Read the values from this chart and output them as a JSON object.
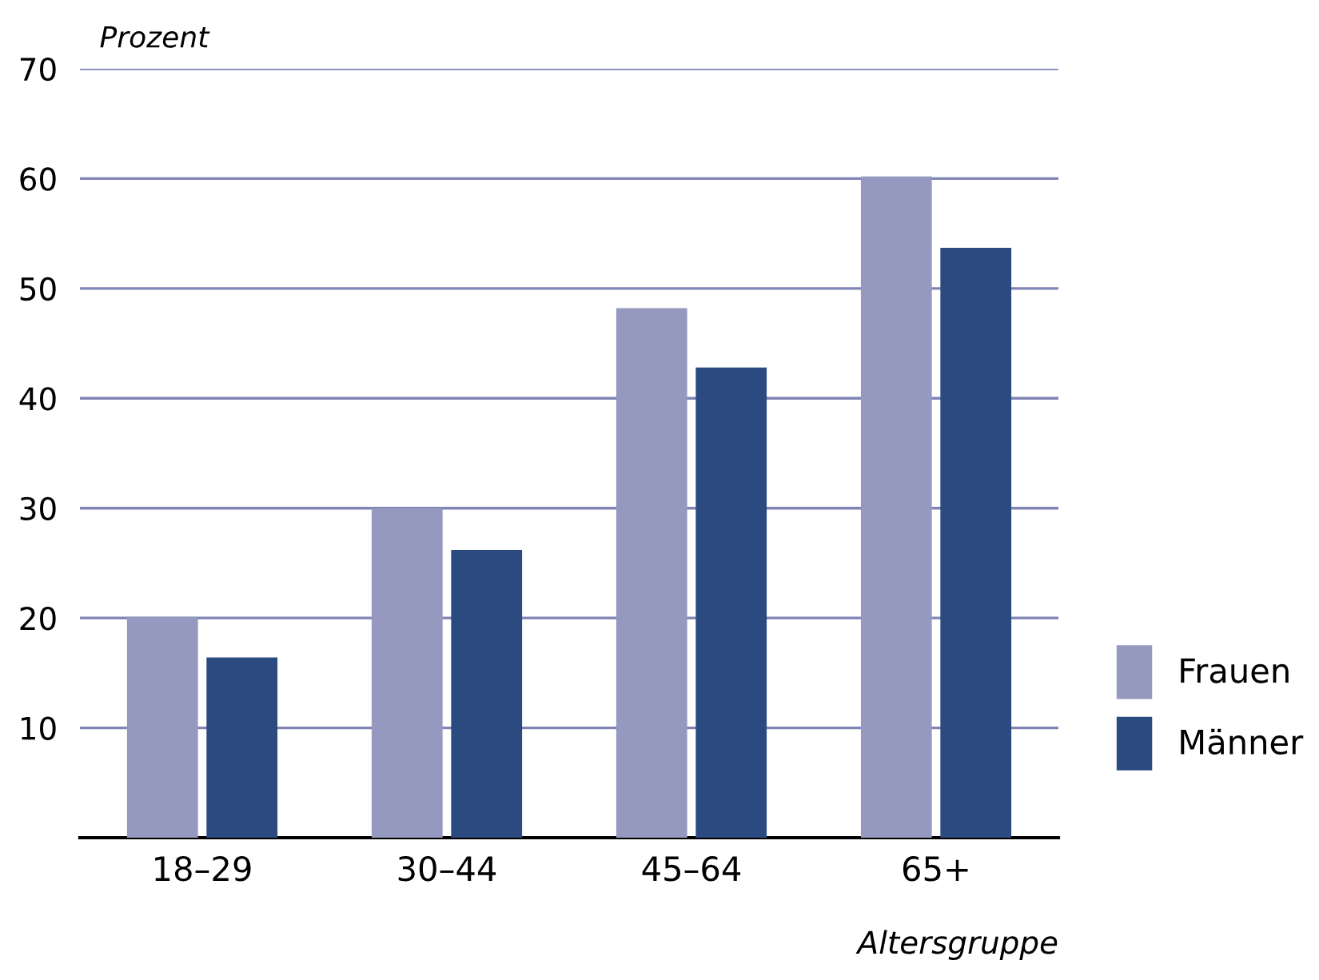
{
  "chart_data": {
    "type": "bar",
    "ylabel": "Prozent",
    "xlabel": "Altersgruppe",
    "categories": [
      "18–29",
      "30–44",
      "45–64",
      "65+"
    ],
    "series": [
      {
        "name": "Frauen",
        "color": "#9599bf",
        "values": [
          20.1,
          30.0,
          48.2,
          60.2
        ]
      },
      {
        "name": "Männer",
        "color": "#2b4a80",
        "values": [
          16.4,
          26.2,
          42.8,
          53.7
        ]
      }
    ],
    "ylim": [
      0,
      70
    ],
    "yticks": [
      10,
      20,
      30,
      40,
      50,
      60,
      70
    ],
    "grid": "y",
    "legend": "bottom right"
  }
}
